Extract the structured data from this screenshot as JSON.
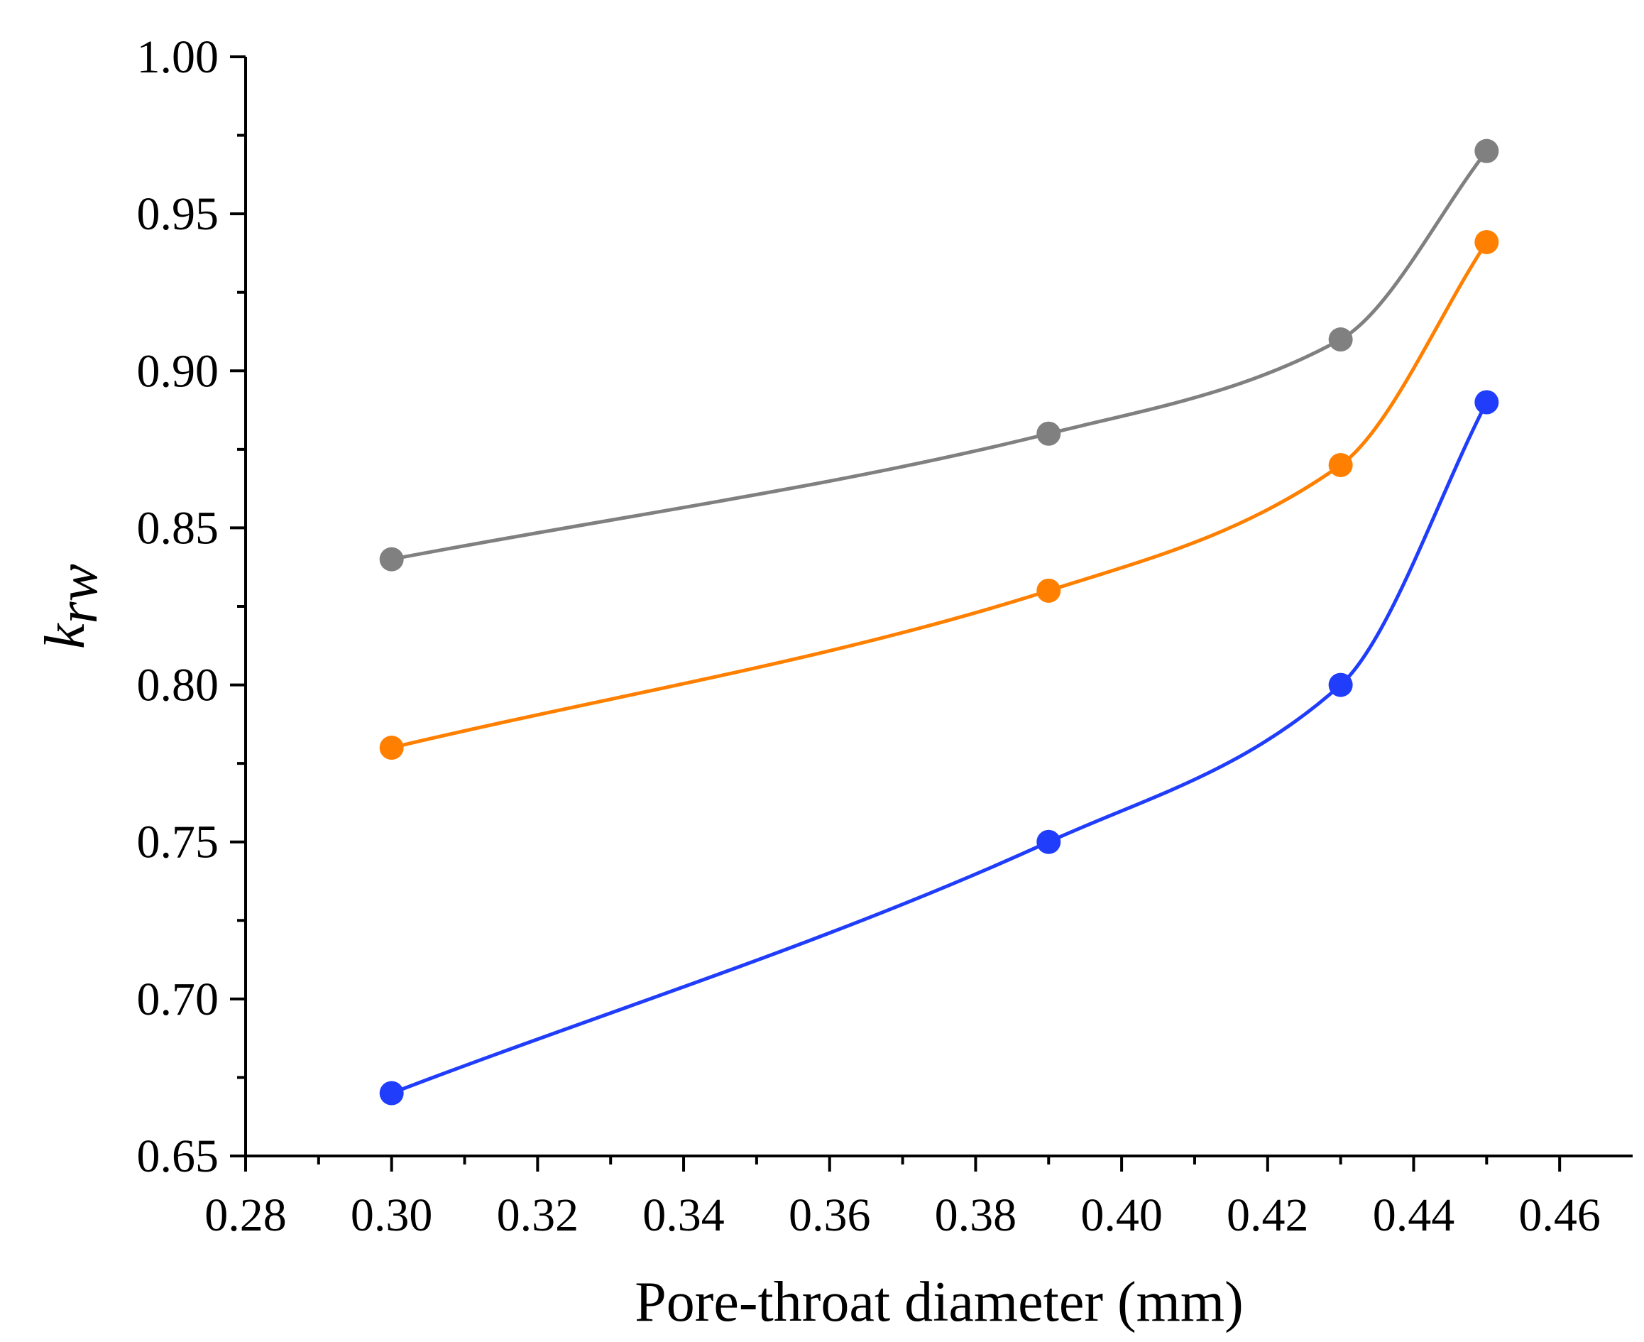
{
  "chart_data": {
    "type": "line",
    "title": "",
    "xlabel": "Pore-throat diameter (mm)",
    "ylabel": {
      "main": "k",
      "subscript": "rw"
    },
    "xlim": [
      0.28,
      0.47
    ],
    "ylim": [
      0.65,
      1.0
    ],
    "xticks": [
      0.28,
      0.3,
      0.32,
      0.34,
      0.36,
      0.38,
      0.4,
      0.42,
      0.44,
      0.46
    ],
    "xtick_labels": [
      "0.28",
      "0.30",
      "0.32",
      "0.34",
      "0.36",
      "0.38",
      "0.40",
      "0.42",
      "0.44",
      "0.46"
    ],
    "yticks": [
      0.65,
      0.7,
      0.75,
      0.8,
      0.85,
      0.9,
      0.95,
      1.0
    ],
    "ytick_labels": [
      "0.65",
      "0.70",
      "0.75",
      "0.80",
      "0.85",
      "0.90",
      "0.95",
      "1.00"
    ],
    "grid": false,
    "x": [
      0.3,
      0.39,
      0.43,
      0.45
    ],
    "series": [
      {
        "name": "gray",
        "color": "#808080",
        "values": [
          0.84,
          0.88,
          0.91,
          0.97
        ]
      },
      {
        "name": "orange",
        "color": "#ff8000",
        "values": [
          0.78,
          0.83,
          0.87,
          0.941
        ]
      },
      {
        "name": "blue",
        "color": "#1f3dfa",
        "values": [
          0.67,
          0.75,
          0.8,
          0.89
        ]
      }
    ]
  }
}
